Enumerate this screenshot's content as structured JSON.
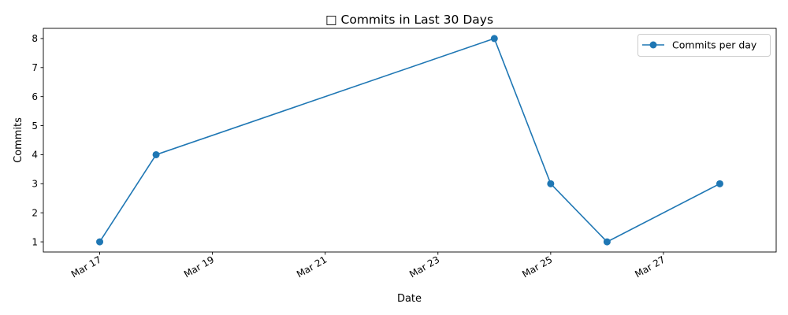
{
  "chart_data": {
    "type": "line",
    "title": "□ Commits in Last 30 Days",
    "xlabel": "Date",
    "ylabel": "Commits",
    "x_tick_labels": [
      "Mar 17",
      "Mar 19",
      "Mar 21",
      "Mar 23",
      "Mar 25",
      "Mar 27"
    ],
    "x_ticks": [
      "2024-03-17",
      "2024-03-19",
      "2024-03-21",
      "2024-03-23",
      "2024-03-25",
      "2024-03-27"
    ],
    "y_ticks": [
      1,
      2,
      3,
      4,
      5,
      6,
      7,
      8
    ],
    "xlim": [
      "2024-03-16",
      "2024-03-29"
    ],
    "ylim": [
      0.65,
      8.35
    ],
    "grid": false,
    "legend_position": "upper right",
    "series": [
      {
        "name": "Commits per day",
        "color": "#1f77b4",
        "marker": "circle",
        "points": [
          {
            "x": "2024-03-17",
            "y": 1
          },
          {
            "x": "2024-03-18",
            "y": 4
          },
          {
            "x": "2024-03-24",
            "y": 8
          },
          {
            "x": "2024-03-25",
            "y": 3
          },
          {
            "x": "2024-03-26",
            "y": 1
          },
          {
            "x": "2024-03-28",
            "y": 3
          }
        ]
      }
    ]
  }
}
